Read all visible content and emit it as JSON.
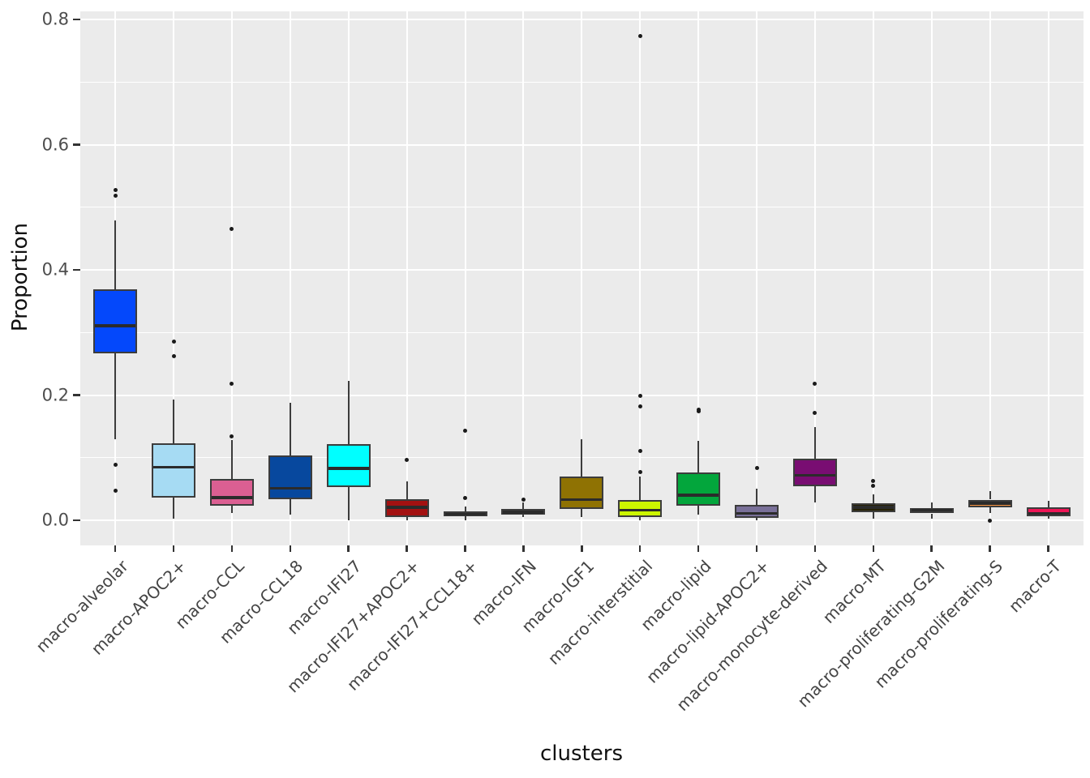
{
  "figure": {
    "background": "#FFFFFF",
    "panel_background": "#EBEBEB",
    "grid_color": "#FFFFFF",
    "box_border_color": "#3C3C3C",
    "median_color": "#2B2B2B",
    "outlier_color": "#1A1A1A",
    "tick_color": "#333333",
    "axis_text_color": "#4D4D4D",
    "axis_title_color": "#111111"
  },
  "chart_data": {
    "type": "box",
    "title": "",
    "xlabel": "clusters",
    "ylabel": "Proportion",
    "ylim": [
      -0.04,
      0.813
    ],
    "y_ticks": [
      0.0,
      0.2,
      0.4,
      0.6,
      0.8
    ],
    "y_tick_labels": [
      "0.0",
      "0.2",
      "0.4",
      "0.6",
      "0.8"
    ],
    "y_minor_ticks": [
      0.1,
      0.3,
      0.5,
      0.7
    ],
    "grid": "major+minor, white on gray panel, vertical line at each category",
    "legend": "none",
    "categories": [
      "macro-alveolar",
      "macro-APOC2+",
      "macro-CCL",
      "macro-CCL18",
      "macro-IFI27",
      "macro-IFI27+APOC2+",
      "macro-IFI27+CCL18+",
      "macro-IFN",
      "macro-IGF1",
      "macro-interstitial",
      "macro-lipid",
      "macro-lipid-APOC2+",
      "macro-monocyte-derived",
      "macro-MT",
      "macro-proliferating-G2M",
      "macro-proliferating-S",
      "macro-T"
    ],
    "boxes": [
      {
        "label": "macro-alveolar",
        "color": "#0448FB",
        "whisker_low": 0.13,
        "q1": 0.267,
        "median": 0.311,
        "q3": 0.369,
        "whisker_high": 0.479,
        "outliers": [
          0.527,
          0.519,
          0.089,
          0.047
        ]
      },
      {
        "label": "macro-APOC2+",
        "color": "#A6DBF3",
        "whisker_low": 0.002,
        "q1": 0.036,
        "median": 0.085,
        "q3": 0.123,
        "whisker_high": 0.193,
        "outliers": [
          0.285,
          0.262
        ]
      },
      {
        "label": "macro-CCL",
        "color": "#DB5F92",
        "whisker_low": 0.011,
        "q1": 0.023,
        "median": 0.036,
        "q3": 0.066,
        "whisker_high": 0.128,
        "outliers": [
          0.466,
          0.218,
          0.134
        ]
      },
      {
        "label": "macro-CCL18",
        "color": "#07489E",
        "whisker_low": 0.009,
        "q1": 0.034,
        "median": 0.051,
        "q3": 0.103,
        "whisker_high": 0.188,
        "outliers": []
      },
      {
        "label": "macro-IFI27",
        "color": "#00FFFF",
        "whisker_low": 0.0,
        "q1": 0.053,
        "median": 0.083,
        "q3": 0.122,
        "whisker_high": 0.223,
        "outliers": []
      },
      {
        "label": "macro-IFI27+APOC2+",
        "color": "#A31111",
        "whisker_low": 0.0,
        "q1": 0.005,
        "median": 0.021,
        "q3": 0.034,
        "whisker_high": 0.062,
        "outliers": [
          0.096
        ]
      },
      {
        "label": "macro-IFI27+CCL18+",
        "color": "#6E7158",
        "whisker_low": 0.0,
        "q1": 0.006,
        "median": 0.01,
        "q3": 0.014,
        "whisker_high": 0.022,
        "outliers": [
          0.143,
          0.036
        ]
      },
      {
        "label": "macro-IFN",
        "color": "#FBB5A3",
        "whisker_low": 0.005,
        "q1": 0.009,
        "median": 0.013,
        "q3": 0.018,
        "whisker_high": 0.028,
        "outliers": [
          0.033
        ]
      },
      {
        "label": "macro-IGF1",
        "color": "#8F7203",
        "whisker_low": 0.005,
        "q1": 0.018,
        "median": 0.033,
        "q3": 0.07,
        "whisker_high": 0.129,
        "outliers": []
      },
      {
        "label": "macro-interstitial",
        "color": "#CCF500",
        "whisker_low": 0.0,
        "q1": 0.005,
        "median": 0.016,
        "q3": 0.033,
        "whisker_high": 0.07,
        "outliers": [
          0.773,
          0.199,
          0.182,
          0.111,
          0.077
        ]
      },
      {
        "label": "macro-lipid",
        "color": "#03A63C",
        "whisker_low": 0.009,
        "q1": 0.023,
        "median": 0.04,
        "q3": 0.076,
        "whisker_high": 0.127,
        "outliers": [
          0.177,
          0.174
        ]
      },
      {
        "label": "macro-lipid-APOC2+",
        "color": "#797099",
        "whisker_low": 0.0,
        "q1": 0.004,
        "median": 0.011,
        "q3": 0.025,
        "whisker_high": 0.051,
        "outliers": [
          0.083
        ]
      },
      {
        "label": "macro-monocyte-derived",
        "color": "#790D72",
        "whisker_low": 0.029,
        "q1": 0.054,
        "median": 0.072,
        "q3": 0.098,
        "whisker_high": 0.149,
        "outliers": [
          0.218,
          0.171
        ]
      },
      {
        "label": "macro-MT",
        "color": "#272104",
        "whisker_low": 0.002,
        "q1": 0.013,
        "median": 0.021,
        "q3": 0.027,
        "whisker_high": 0.041,
        "outliers": [
          0.063,
          0.055
        ]
      },
      {
        "label": "macro-proliferating-G2M",
        "color": "#9A1ED1",
        "whisker_low": 0.002,
        "q1": 0.011,
        "median": 0.016,
        "q3": 0.02,
        "whisker_high": 0.029,
        "outliers": []
      },
      {
        "label": "macro-proliferating-S",
        "color": "#F79240",
        "whisker_low": 0.011,
        "q1": 0.021,
        "median": 0.027,
        "q3": 0.033,
        "whisker_high": 0.046,
        "outliers": [
          0.0
        ]
      },
      {
        "label": "macro-T",
        "color": "#EE1556",
        "whisker_low": 0.002,
        "q1": 0.007,
        "median": 0.011,
        "q3": 0.021,
        "whisker_high": 0.031,
        "outliers": []
      }
    ]
  }
}
